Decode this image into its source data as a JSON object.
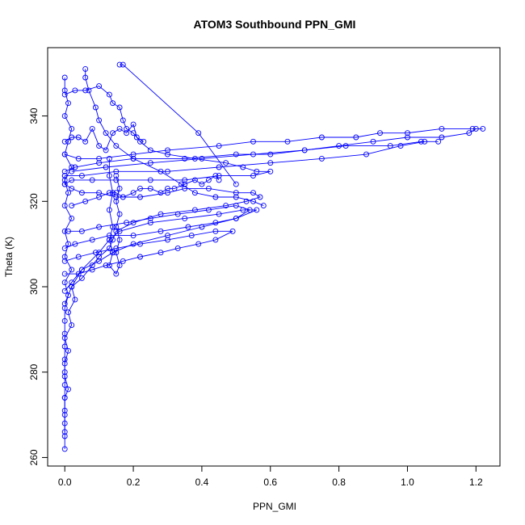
{
  "chart_data": {
    "type": "scatter",
    "title": "ATOM3 Southbound PPN_GMI",
    "xlabel": "PPN_GMI",
    "ylabel": "Theta (K)",
    "xlim": [
      -0.05,
      1.27
    ],
    "ylim": [
      258,
      356
    ],
    "xticks": [
      0.0,
      0.2,
      0.4,
      0.6,
      0.8,
      1.0,
      1.2
    ],
    "xtick_labels": [
      "0.0",
      "0.2",
      "0.4",
      "0.6",
      "0.8",
      "1.0",
      "1.2"
    ],
    "yticks": [
      260,
      280,
      300,
      320,
      340
    ],
    "ytick_labels": [
      "260",
      "280",
      "300",
      "320",
      "340"
    ],
    "marker": "open-circle",
    "connected_lines": true,
    "color": "#0000ff",
    "grid": false,
    "series": [
      {
        "name": "",
        "points": [
          [
            0.0,
            262
          ],
          [
            0.0,
            265
          ],
          [
            0.0,
            268
          ],
          [
            0.0,
            271
          ],
          [
            0.0,
            274
          ],
          [
            0.01,
            276
          ],
          [
            0.0,
            279
          ],
          [
            0.0,
            282
          ],
          [
            0.01,
            285
          ],
          [
            0.0,
            288
          ],
          [
            0.02,
            291
          ],
          [
            0.01,
            294
          ],
          [
            0.03,
            297
          ],
          [
            0.02,
            300
          ],
          [
            0.05,
            302
          ],
          [
            0.08,
            305
          ],
          [
            0.1,
            307
          ],
          [
            0.13,
            309
          ],
          [
            0.14,
            311
          ],
          [
            0.15,
            313
          ],
          [
            0.2,
            315
          ],
          [
            0.28,
            317
          ],
          [
            0.38,
            318
          ],
          [
            0.47,
            319
          ],
          [
            0.53,
            320
          ],
          [
            0.57,
            321
          ],
          [
            0.55,
            322
          ],
          [
            0.5,
            322
          ],
          [
            0.42,
            323
          ],
          [
            0.35,
            323
          ],
          [
            0.3,
            322
          ],
          [
            0.22,
            321
          ],
          [
            0.15,
            321
          ],
          [
            0.1,
            322
          ],
          [
            0.05,
            322
          ],
          [
            0.02,
            323
          ],
          [
            0.0,
            324
          ],
          [
            0.0,
            326
          ]
        ]
      },
      {
        "name": "",
        "points": [
          [
            0.0,
            296
          ],
          [
            0.02,
            300
          ],
          [
            0.05,
            304
          ],
          [
            0.1,
            308
          ],
          [
            0.13,
            311
          ],
          [
            0.16,
            313
          ],
          [
            0.25,
            315
          ],
          [
            0.35,
            316
          ],
          [
            0.45,
            317
          ],
          [
            0.52,
            318
          ],
          [
            0.56,
            318
          ],
          [
            0.5,
            316
          ],
          [
            0.4,
            314
          ],
          [
            0.3,
            312
          ],
          [
            0.2,
            310
          ],
          [
            0.14,
            308
          ],
          [
            0.1,
            306
          ],
          [
            0.05,
            304
          ],
          [
            0.02,
            301
          ],
          [
            0.0,
            299
          ]
        ]
      },
      {
        "name": "",
        "points": [
          [
            0.0,
            327
          ],
          [
            0.03,
            328
          ],
          [
            0.1,
            329
          ],
          [
            0.2,
            330
          ],
          [
            0.35,
            330
          ],
          [
            0.5,
            331
          ],
          [
            0.6,
            331
          ],
          [
            0.7,
            332
          ],
          [
            0.8,
            333
          ],
          [
            0.9,
            334
          ],
          [
            1.0,
            335
          ],
          [
            1.1,
            335
          ],
          [
            1.18,
            336
          ],
          [
            1.2,
            337
          ],
          [
            1.22,
            337
          ],
          [
            1.19,
            337
          ],
          [
            1.1,
            337
          ],
          [
            1.0,
            336
          ],
          [
            0.92,
            336
          ],
          [
            0.85,
            335
          ],
          [
            0.75,
            335
          ],
          [
            0.65,
            334
          ],
          [
            0.55,
            334
          ],
          [
            0.45,
            333
          ],
          [
            0.3,
            332
          ],
          [
            0.2,
            331
          ],
          [
            0.1,
            330
          ],
          [
            0.04,
            330
          ],
          [
            0.0,
            331
          ]
        ]
      },
      {
        "name": "",
        "points": [
          [
            0.0,
            326
          ],
          [
            0.05,
            326
          ],
          [
            0.15,
            327
          ],
          [
            0.3,
            327
          ],
          [
            0.45,
            328
          ],
          [
            0.6,
            329
          ],
          [
            0.75,
            330
          ],
          [
            0.88,
            331
          ],
          [
            0.98,
            333
          ],
          [
            1.05,
            334
          ],
          [
            1.09,
            334
          ],
          [
            1.04,
            334
          ],
          [
            0.95,
            333
          ],
          [
            0.82,
            333
          ],
          [
            0.7,
            332
          ],
          [
            0.55,
            331
          ],
          [
            0.4,
            330
          ],
          [
            0.25,
            329
          ],
          [
            0.12,
            328
          ],
          [
            0.02,
            327
          ]
        ]
      },
      {
        "name": "",
        "points": [
          [
            0.0,
            345
          ],
          [
            0.03,
            346
          ],
          [
            0.06,
            346
          ],
          [
            0.1,
            347
          ],
          [
            0.13,
            345
          ],
          [
            0.14,
            343
          ],
          [
            0.16,
            342
          ],
          [
            0.17,
            339
          ],
          [
            0.18,
            337
          ],
          [
            0.2,
            336
          ],
          [
            0.22,
            334
          ],
          [
            0.25,
            332
          ],
          [
            0.3,
            331
          ],
          [
            0.38,
            330
          ],
          [
            0.47,
            329
          ],
          [
            0.52,
            328
          ],
          [
            0.56,
            327
          ],
          [
            0.6,
            327
          ],
          [
            0.55,
            326
          ],
          [
            0.45,
            326
          ],
          [
            0.35,
            325
          ],
          [
            0.25,
            325
          ],
          [
            0.15,
            325
          ],
          [
            0.08,
            325
          ],
          [
            0.02,
            325
          ],
          [
            0.0,
            324
          ]
        ]
      },
      {
        "name": "",
        "points": [
          [
            0.0,
            349
          ],
          [
            0.0,
            346
          ],
          [
            0.01,
            343
          ],
          [
            0.0,
            340
          ],
          [
            0.02,
            337
          ],
          [
            0.01,
            334
          ],
          [
            0.0,
            331
          ],
          [
            0.02,
            328
          ],
          [
            0.0,
            325
          ],
          [
            0.01,
            322
          ],
          [
            0.0,
            319
          ],
          [
            0.02,
            316
          ],
          [
            0.0,
            313
          ],
          [
            0.01,
            310
          ],
          [
            0.0,
            307
          ],
          [
            0.02,
            304
          ],
          [
            0.0,
            301
          ],
          [
            0.01,
            298
          ],
          [
            0.0,
            295
          ],
          [
            0.0,
            292
          ],
          [
            0.0,
            289
          ],
          [
            0.0,
            286
          ],
          [
            0.0,
            283
          ],
          [
            0.0,
            280
          ],
          [
            0.0,
            277
          ],
          [
            0.0,
            274
          ],
          [
            0.0,
            270
          ],
          [
            0.0,
            266
          ]
        ]
      },
      {
        "name": "",
        "points": [
          [
            0.13,
            330
          ],
          [
            0.13,
            326
          ],
          [
            0.14,
            322
          ],
          [
            0.13,
            318
          ],
          [
            0.14,
            314
          ],
          [
            0.13,
            311
          ],
          [
            0.14,
            308
          ],
          [
            0.13,
            305
          ],
          [
            0.15,
            303
          ],
          [
            0.16,
            305
          ],
          [
            0.15,
            308
          ],
          [
            0.16,
            311
          ],
          [
            0.15,
            314
          ],
          [
            0.16,
            317
          ],
          [
            0.15,
            320
          ],
          [
            0.16,
            323
          ],
          [
            0.15,
            326
          ]
        ]
      },
      {
        "name": "",
        "points": [
          [
            0.06,
            351
          ],
          [
            0.06,
            349
          ],
          [
            0.07,
            346
          ],
          [
            0.09,
            342
          ],
          [
            0.1,
            339
          ],
          [
            0.12,
            336
          ],
          [
            0.15,
            333
          ],
          [
            0.2,
            330
          ],
          [
            0.28,
            327
          ],
          [
            0.34,
            324
          ],
          [
            0.38,
            322
          ],
          [
            0.44,
            321
          ],
          [
            0.5,
            321
          ],
          [
            0.55,
            320
          ],
          [
            0.58,
            319
          ]
        ]
      },
      {
        "name": "",
        "points": [
          [
            0.16,
            352
          ],
          [
            0.17,
            352
          ],
          [
            0.39,
            336
          ],
          [
            0.5,
            324
          ]
        ]
      },
      {
        "name": "",
        "points": [
          [
            0.0,
            309
          ],
          [
            0.03,
            310
          ],
          [
            0.08,
            311
          ],
          [
            0.13,
            312
          ],
          [
            0.2,
            312
          ],
          [
            0.28,
            313
          ],
          [
            0.36,
            314
          ],
          [
            0.44,
            315
          ],
          [
            0.5,
            316
          ],
          [
            0.54,
            318
          ],
          [
            0.5,
            319
          ],
          [
            0.42,
            318
          ],
          [
            0.33,
            317
          ],
          [
            0.25,
            316
          ],
          [
            0.18,
            315
          ],
          [
            0.1,
            314
          ],
          [
            0.05,
            313
          ],
          [
            0.01,
            313
          ]
        ]
      },
      {
        "name": "",
        "points": [
          [
            0.0,
            303
          ],
          [
            0.04,
            303
          ],
          [
            0.08,
            304
          ],
          [
            0.12,
            305
          ],
          [
            0.17,
            306
          ],
          [
            0.22,
            307
          ],
          [
            0.28,
            308
          ],
          [
            0.33,
            309
          ],
          [
            0.39,
            310
          ],
          [
            0.44,
            311
          ],
          [
            0.49,
            313
          ],
          [
            0.44,
            313
          ],
          [
            0.37,
            312
          ],
          [
            0.3,
            311
          ],
          [
            0.22,
            310
          ],
          [
            0.15,
            309
          ],
          [
            0.09,
            308
          ],
          [
            0.04,
            307
          ],
          [
            0.0,
            306
          ]
        ]
      },
      {
        "name": "",
        "points": [
          [
            0.02,
            319
          ],
          [
            0.06,
            320
          ],
          [
            0.1,
            321
          ],
          [
            0.13,
            322
          ],
          [
            0.15,
            322
          ],
          [
            0.17,
            321
          ],
          [
            0.2,
            322
          ],
          [
            0.22,
            323
          ],
          [
            0.25,
            323
          ],
          [
            0.28,
            322
          ],
          [
            0.3,
            323
          ],
          [
            0.32,
            323
          ],
          [
            0.35,
            324
          ],
          [
            0.38,
            325
          ],
          [
            0.4,
            324
          ],
          [
            0.42,
            325
          ],
          [
            0.44,
            326
          ],
          [
            0.45,
            325
          ]
        ]
      },
      {
        "name": "",
        "points": [
          [
            0.0,
            334
          ],
          [
            0.02,
            335
          ],
          [
            0.04,
            335
          ],
          [
            0.06,
            334
          ],
          [
            0.08,
            337
          ],
          [
            0.1,
            333
          ],
          [
            0.12,
            332
          ],
          [
            0.14,
            336
          ],
          [
            0.16,
            337
          ],
          [
            0.18,
            336
          ],
          [
            0.2,
            338
          ],
          [
            0.21,
            335
          ],
          [
            0.23,
            334
          ]
        ]
      }
    ]
  }
}
